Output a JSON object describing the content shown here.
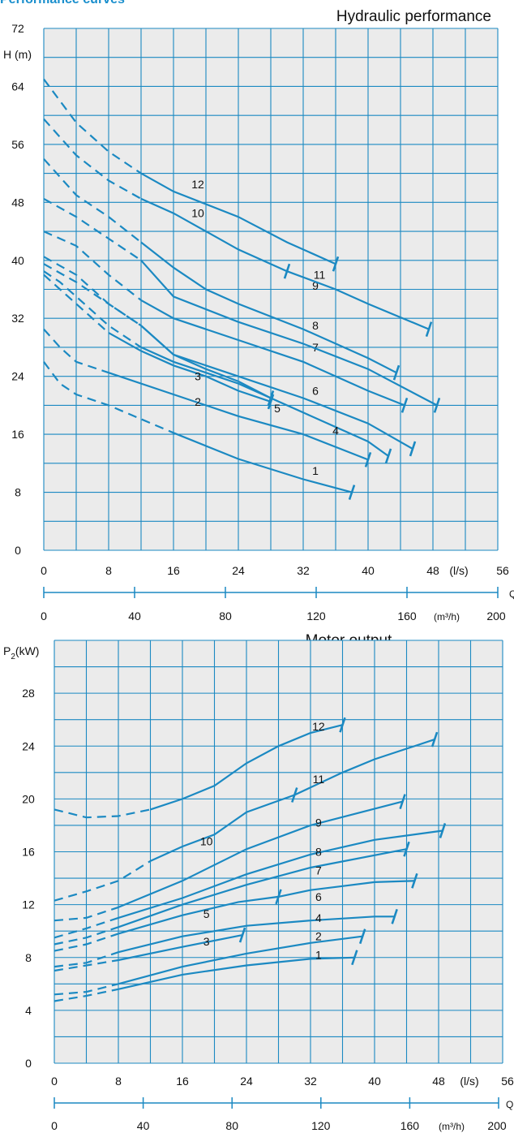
{
  "header": {
    "title": "Performance curves"
  },
  "charts": {
    "hydraulic": {
      "title": "Hydraulic performance",
      "ylabel": "H (m)",
      "x_unit": "(l/s)",
      "q_label": "Q",
      "m3h_unit": "(m³/h)"
    },
    "motor": {
      "title": "Motor output",
      "ylabel_main": "P",
      "ylabel_sub": "2",
      "ylabel_rest": "(kW)",
      "x_unit": "(l/s)",
      "q_label": "Q",
      "m3h_unit": "(m³/h)"
    }
  },
  "chart_data": [
    {
      "type": "line",
      "title": "Hydraulic performance",
      "ylabel": "H (m)",
      "xlabel": "Q (l/s)",
      "xlim": [
        0,
        56
      ],
      "ylim": [
        0,
        72
      ],
      "x_ticks": [
        0,
        8,
        16,
        24,
        32,
        40,
        48,
        56
      ],
      "y_ticks": [
        0,
        8,
        16,
        24,
        32,
        40,
        48,
        56,
        64,
        72
      ],
      "secondary_x": {
        "unit": "(m³/h)",
        "ticks": [
          0,
          40,
          80,
          120,
          160,
          200
        ]
      },
      "grid": true,
      "series": [
        {
          "name": "1",
          "dashed_until": 10,
          "label_at": [
            33.5,
            11
          ],
          "points": [
            [
              0,
              26
            ],
            [
              2,
              23
            ],
            [
              4,
              21.5
            ],
            [
              8,
              20
            ],
            [
              16,
              16.2
            ],
            [
              24,
              12.6
            ],
            [
              32,
              9.8
            ],
            [
              38,
              8
            ]
          ]
        },
        {
          "name": "2",
          "dashed_until": 8,
          "label_at": [
            19,
            20.5
          ],
          "points": [
            [
              0,
              30.5
            ],
            [
              2,
              28
            ],
            [
              4,
              26
            ],
            [
              8,
              24.5
            ],
            [
              16,
              21.5
            ],
            [
              24,
              18.5
            ],
            [
              32,
              16
            ],
            [
              40,
              12.5
            ]
          ]
        },
        {
          "name": "3",
          "dashed_until": 8,
          "label_at": [
            19,
            24
          ],
          "points": [
            [
              0,
              38
            ],
            [
              2,
              36
            ],
            [
              4,
              34
            ],
            [
              8,
              30
            ],
            [
              12,
              27.5
            ],
            [
              16,
              25.5
            ],
            [
              20,
              24
            ],
            [
              24,
              22
            ],
            [
              28,
              20.5
            ]
          ]
        },
        {
          "name": "4",
          "dashed_until": 10,
          "label_at": [
            36,
            16.5
          ],
          "points": [
            [
              0,
              38.5
            ],
            [
              2,
              37
            ],
            [
              4,
              35
            ],
            [
              8,
              31
            ],
            [
              12,
              28
            ],
            [
              16,
              26
            ],
            [
              20,
              24.5
            ],
            [
              24,
              23
            ],
            [
              32,
              19
            ],
            [
              40,
              15
            ],
            [
              42.5,
              13
            ]
          ]
        },
        {
          "name": "5",
          "dashed_until": 10,
          "label_at": [
            28.8,
            19.6
          ],
          "points": [
            [
              0,
              39.5
            ],
            [
              4,
              37
            ],
            [
              8,
              34
            ],
            [
              12,
              31
            ],
            [
              16,
              27
            ],
            [
              20,
              25
            ],
            [
              24,
              23.3
            ],
            [
              28,
              21
            ]
          ]
        },
        {
          "name": "6",
          "dashed_until": 10,
          "label_at": [
            33.5,
            22
          ],
          "points": [
            [
              0,
              40.5
            ],
            [
              4,
              38
            ],
            [
              8,
              34
            ],
            [
              12,
              31
            ],
            [
              16,
              27
            ],
            [
              24,
              24
            ],
            [
              32,
              21
            ],
            [
              40,
              17.5
            ],
            [
              45.5,
              14
            ]
          ]
        },
        {
          "name": "7",
          "dashed_until": 10,
          "label_at": [
            33.5,
            28
          ],
          "points": [
            [
              0,
              44
            ],
            [
              4,
              42
            ],
            [
              8,
              38
            ],
            [
              12,
              34.5
            ],
            [
              16,
              32
            ],
            [
              24,
              29
            ],
            [
              32,
              26
            ],
            [
              40,
              22
            ],
            [
              44.5,
              20
            ]
          ]
        },
        {
          "name": "8",
          "dashed_until": 10,
          "label_at": [
            33.5,
            31
          ],
          "points": [
            [
              0,
              48.5
            ],
            [
              4,
              46
            ],
            [
              8,
              43
            ],
            [
              12,
              40
            ],
            [
              16,
              35
            ],
            [
              24,
              31.5
            ],
            [
              32,
              28.5
            ],
            [
              40,
              25
            ],
            [
              48.5,
              20
            ]
          ]
        },
        {
          "name": "9",
          "dashed_until": 10,
          "label_at": [
            33.5,
            36.5
          ],
          "points": [
            [
              0,
              54
            ],
            [
              4,
              49
            ],
            [
              8,
              46
            ],
            [
              12,
              42.5
            ],
            [
              16,
              39
            ],
            [
              20,
              36
            ],
            [
              24,
              34
            ],
            [
              32,
              30.5
            ],
            [
              40,
              26.5
            ],
            [
              43.5,
              24.5
            ]
          ]
        },
        {
          "name": "10",
          "dashed_until": 10,
          "label_at": [
            19,
            46.5
          ],
          "points": [
            [
              0,
              59.5
            ],
            [
              4,
              54.5
            ],
            [
              8,
              51
            ],
            [
              12,
              48.5
            ],
            [
              16,
              46.5
            ],
            [
              24,
              41.5
            ],
            [
              30,
              38.5
            ]
          ]
        },
        {
          "name": "11",
          "dashed_until": 10,
          "label_at": [
            34,
            38
          ],
          "points": [
            [
              30,
              38.5
            ],
            [
              36,
              36
            ],
            [
              40,
              34
            ],
            [
              47.5,
              30.5
            ]
          ]
        },
        {
          "name": "12",
          "dashed_until": 10,
          "label_at": [
            19,
            50.5
          ],
          "points": [
            [
              0,
              65
            ],
            [
              4,
              59
            ],
            [
              8,
              55
            ],
            [
              12,
              52
            ],
            [
              16,
              49.5
            ],
            [
              24,
              46
            ],
            [
              30,
              42.5
            ],
            [
              36,
              39.5
            ]
          ]
        }
      ]
    },
    {
      "type": "line",
      "title": "Motor output",
      "ylabel": "P2(kW)",
      "xlabel": "Q (l/s)",
      "xlim": [
        0,
        56
      ],
      "ylim": [
        0,
        32
      ],
      "x_ticks": [
        0,
        8,
        16,
        24,
        32,
        40,
        48,
        56
      ],
      "y_ticks": [
        0,
        4,
        8,
        12,
        16,
        20,
        24,
        28
      ],
      "secondary_x": {
        "unit": "(m³/h)",
        "ticks": [
          0,
          40,
          80,
          120,
          160,
          200
        ]
      },
      "grid": true,
      "series": [
        {
          "name": "1",
          "dashed_until": 8,
          "label_at": [
            33,
            8.2
          ],
          "points": [
            [
              0,
              4.7
            ],
            [
              4,
              5.1
            ],
            [
              8,
              5.6
            ],
            [
              16,
              6.7
            ],
            [
              24,
              7.4
            ],
            [
              32,
              7.9
            ],
            [
              37.5,
              8
            ]
          ]
        },
        {
          "name": "2",
          "dashed_until": 8,
          "label_at": [
            33,
            9.6
          ],
          "points": [
            [
              0,
              5.2
            ],
            [
              4,
              5.4
            ],
            [
              8,
              6
            ],
            [
              16,
              7.3
            ],
            [
              24,
              8.3
            ],
            [
              32,
              9.1
            ],
            [
              38.5,
              9.6
            ]
          ]
        },
        {
          "name": "3",
          "dashed_until": 8,
          "label_at": [
            19,
            9.2
          ],
          "points": [
            [
              0,
              7
            ],
            [
              4,
              7.4
            ],
            [
              8,
              7.8
            ],
            [
              16,
              8.8
            ],
            [
              23.5,
              9.7
            ]
          ]
        },
        {
          "name": "4",
          "dashed_until": 8,
          "label_at": [
            33,
            11
          ],
          "points": [
            [
              0,
              7.3
            ],
            [
              4,
              7.6
            ],
            [
              8,
              8.4
            ],
            [
              16,
              9.6
            ],
            [
              24,
              10.4
            ],
            [
              32,
              10.8
            ],
            [
              40,
              11.1
            ],
            [
              42.5,
              11.1
            ]
          ]
        },
        {
          "name": "5",
          "dashed_until": 8,
          "label_at": [
            19,
            11.3
          ],
          "points": [
            [
              0,
              8.5
            ],
            [
              4,
              9
            ],
            [
              8,
              9.8
            ],
            [
              16,
              11.2
            ],
            [
              23,
              12.2
            ],
            [
              28,
              12.6
            ]
          ]
        },
        {
          "name": "6",
          "dashed_until": 8,
          "label_at": [
            33,
            12.6
          ],
          "points": [
            [
              28,
              12.6
            ],
            [
              32,
              13.1
            ],
            [
              36,
              13.4
            ],
            [
              40,
              13.7
            ],
            [
              45,
              13.8
            ]
          ]
        },
        {
          "name": "7",
          "dashed_until": 8,
          "label_at": [
            33,
            14.6
          ],
          "points": [
            [
              0,
              9
            ],
            [
              4,
              9.5
            ],
            [
              8,
              10.3
            ],
            [
              16,
              12
            ],
            [
              24,
              13.5
            ],
            [
              32,
              14.8
            ],
            [
              44,
              16.2
            ]
          ]
        },
        {
          "name": "8",
          "dashed_until": 8,
          "label_at": [
            33,
            16
          ],
          "points": [
            [
              0,
              9.5
            ],
            [
              4,
              10.2
            ],
            [
              8,
              11
            ],
            [
              16,
              12.5
            ],
            [
              24,
              14.3
            ],
            [
              32,
              15.8
            ],
            [
              40,
              16.9
            ],
            [
              48.5,
              17.6
            ]
          ]
        },
        {
          "name": "9",
          "dashed_until": 8,
          "label_at": [
            33,
            18.2
          ],
          "points": [
            [
              0,
              10.8
            ],
            [
              4,
              11
            ],
            [
              8,
              11.8
            ],
            [
              16,
              13.8
            ],
            [
              24,
              16.2
            ],
            [
              32,
              18
            ],
            [
              43.5,
              19.8
            ]
          ]
        },
        {
          "name": "10",
          "dashed_until": 12,
          "label_at": [
            19,
            16.8
          ],
          "points": [
            [
              0,
              12.3
            ],
            [
              4,
              13
            ],
            [
              8,
              13.8
            ],
            [
              12,
              15.3
            ],
            [
              16,
              16.4
            ],
            [
              20,
              17.3
            ],
            [
              24,
              19
            ],
            [
              30,
              20.3
            ]
          ]
        },
        {
          "name": "11",
          "dashed_until": 12,
          "label_at": [
            33,
            21.5
          ],
          "points": [
            [
              30,
              20.3
            ],
            [
              36,
              22
            ],
            [
              40,
              23
            ],
            [
              47.5,
              24.5
            ]
          ]
        },
        {
          "name": "12",
          "dashed_until": 12,
          "label_at": [
            33,
            25.5
          ],
          "points": [
            [
              0,
              19.2
            ],
            [
              4,
              18.6
            ],
            [
              8,
              18.7
            ],
            [
              12,
              19.2
            ],
            [
              16,
              20
            ],
            [
              20,
              21
            ],
            [
              24,
              22.7
            ],
            [
              28,
              24
            ],
            [
              32,
              25
            ],
            [
              36,
              25.6
            ]
          ]
        }
      ]
    }
  ]
}
